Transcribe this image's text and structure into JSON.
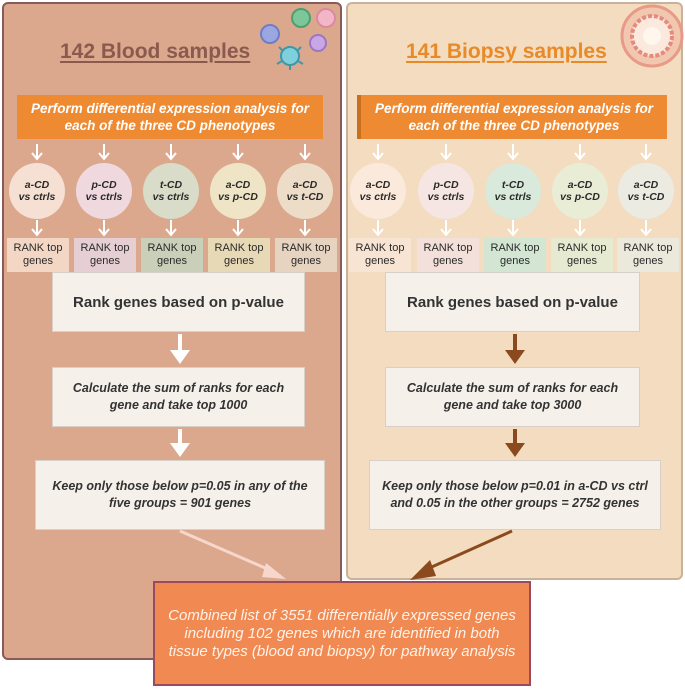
{
  "blood": {
    "title": "142 Blood samples",
    "de_analysis": "Perform differential expression analysis for each of the three CD phenotypes",
    "comparisons": [
      {
        "line1": "a-CD",
        "line2": "vs ctrls"
      },
      {
        "line1": "p-CD",
        "line2": "vs ctrls"
      },
      {
        "line1": "t-CD",
        "line2": "vs ctrls"
      },
      {
        "line1": "a-CD",
        "line2": "vs p-CD"
      },
      {
        "line1": "a-CD",
        "line2": "vs t-CD"
      }
    ],
    "rank_label": "RANK top genes",
    "rank_step": "Rank genes based on p-value",
    "sum_step": "Calculate the sum of ranks for each gene and take top 1000",
    "filter_step": "Keep only those below p=0.05 in any of the five groups = 901 genes"
  },
  "biopsy": {
    "title": "141 Biopsy samples",
    "de_analysis": "Perform differential expression analysis for each of the three CD phenotypes",
    "comparisons": [
      {
        "line1": "a-CD",
        "line2": "vs ctrls"
      },
      {
        "line1": "p-CD",
        "line2": "vs ctrls"
      },
      {
        "line1": "t-CD",
        "line2": "vs ctrls"
      },
      {
        "line1": "a-CD",
        "line2": "vs p-CD"
      },
      {
        "line1": "a-CD",
        "line2": "vs t-CD"
      }
    ],
    "rank_label": "RANK top genes",
    "rank_step": "Rank genes based on p-value",
    "sum_step": "Calculate the sum of ranks for each gene and take top 3000",
    "filter_step": "Keep only those below p=0.01 in a-CD vs ctrl and 0.05 in the other groups = 2752 genes"
  },
  "combined": "Combined list of 3551 differentially expressed genes including 102 genes which are identified in both tissue types (blood and biopsy) for pathway analysis",
  "colors": {
    "blood_panel": "#dba88e",
    "biopsy_panel": "#f3dcc0",
    "accent_orange": "#ee8a32",
    "combined_box": "#f08a52",
    "arrow_white": "#ffffff",
    "arrow_brown": "#8a4a1e"
  },
  "icons": [
    "blood-cells-icon",
    "tissue-biopsy-icon"
  ]
}
